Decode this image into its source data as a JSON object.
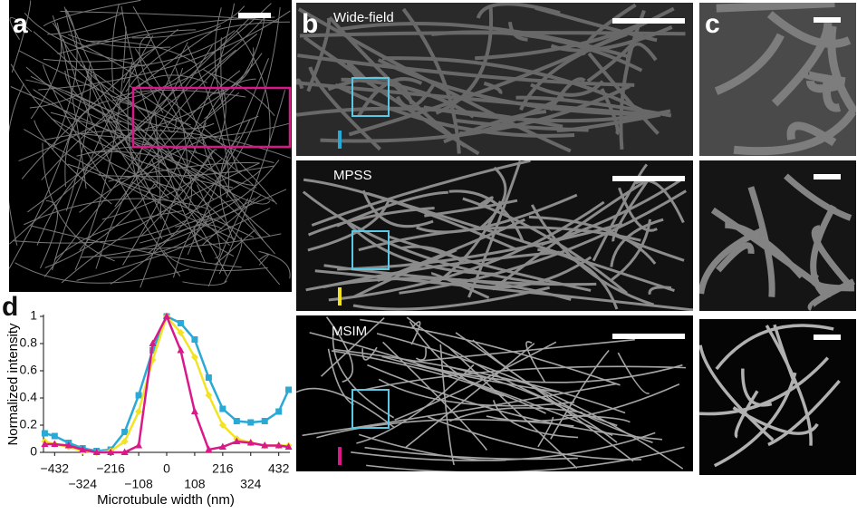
{
  "panels": {
    "a": {
      "label": "a"
    },
    "b": {
      "label": "b",
      "images": [
        "Wide-field",
        "MPSS",
        "MSIM"
      ]
    },
    "c": {
      "label": "c"
    },
    "d": {
      "label": "d"
    }
  },
  "chart_data": {
    "type": "line",
    "x_label": "Microtubule width (nm)",
    "y_label": "Normalized intensity",
    "x": [
      -470,
      -432,
      -378,
      -324,
      -270,
      -216,
      -162,
      -108,
      -54,
      0,
      54,
      108,
      162,
      216,
      270,
      324,
      378,
      432,
      470
    ],
    "series": [
      {
        "color": "#29a9d6",
        "marker": "square",
        "values": [
          0.14,
          0.12,
          0.07,
          0.03,
          0.01,
          0.02,
          0.15,
          0.42,
          0.75,
          1.0,
          0.95,
          0.83,
          0.55,
          0.32,
          0.23,
          0.22,
          0.23,
          0.3,
          0.46
        ]
      },
      {
        "color": "#f2e324",
        "marker": "diamond",
        "values": [
          0.08,
          0.06,
          0.04,
          0.01,
          0,
          0.01,
          0.08,
          0.3,
          0.68,
          1.0,
          0.88,
          0.7,
          0.42,
          0.2,
          0.1,
          0.07,
          0.05,
          0.05,
          0.05
        ]
      },
      {
        "color": "#d9188a",
        "marker": "triangle",
        "values": [
          0.06,
          0.06,
          0.05,
          0.02,
          0,
          0,
          0,
          0.05,
          0.8,
          1.0,
          0.75,
          0.3,
          0.02,
          0.04,
          0.08,
          0.07,
          0.05,
          0.05,
          0.04
        ]
      }
    ],
    "xlim": [
      -475,
      475
    ],
    "ylim": [
      0,
      1
    ],
    "xticks": [
      {
        "value": -432,
        "label": "−432"
      },
      {
        "value": -324,
        "label": "−324"
      },
      {
        "value": -216,
        "label": "−216"
      },
      {
        "value": -108,
        "label": "−108"
      },
      0,
      108,
      216,
      324,
      432
    ],
    "yticks": [
      0,
      0.2,
      0.4,
      0.6,
      0.8,
      1
    ]
  }
}
